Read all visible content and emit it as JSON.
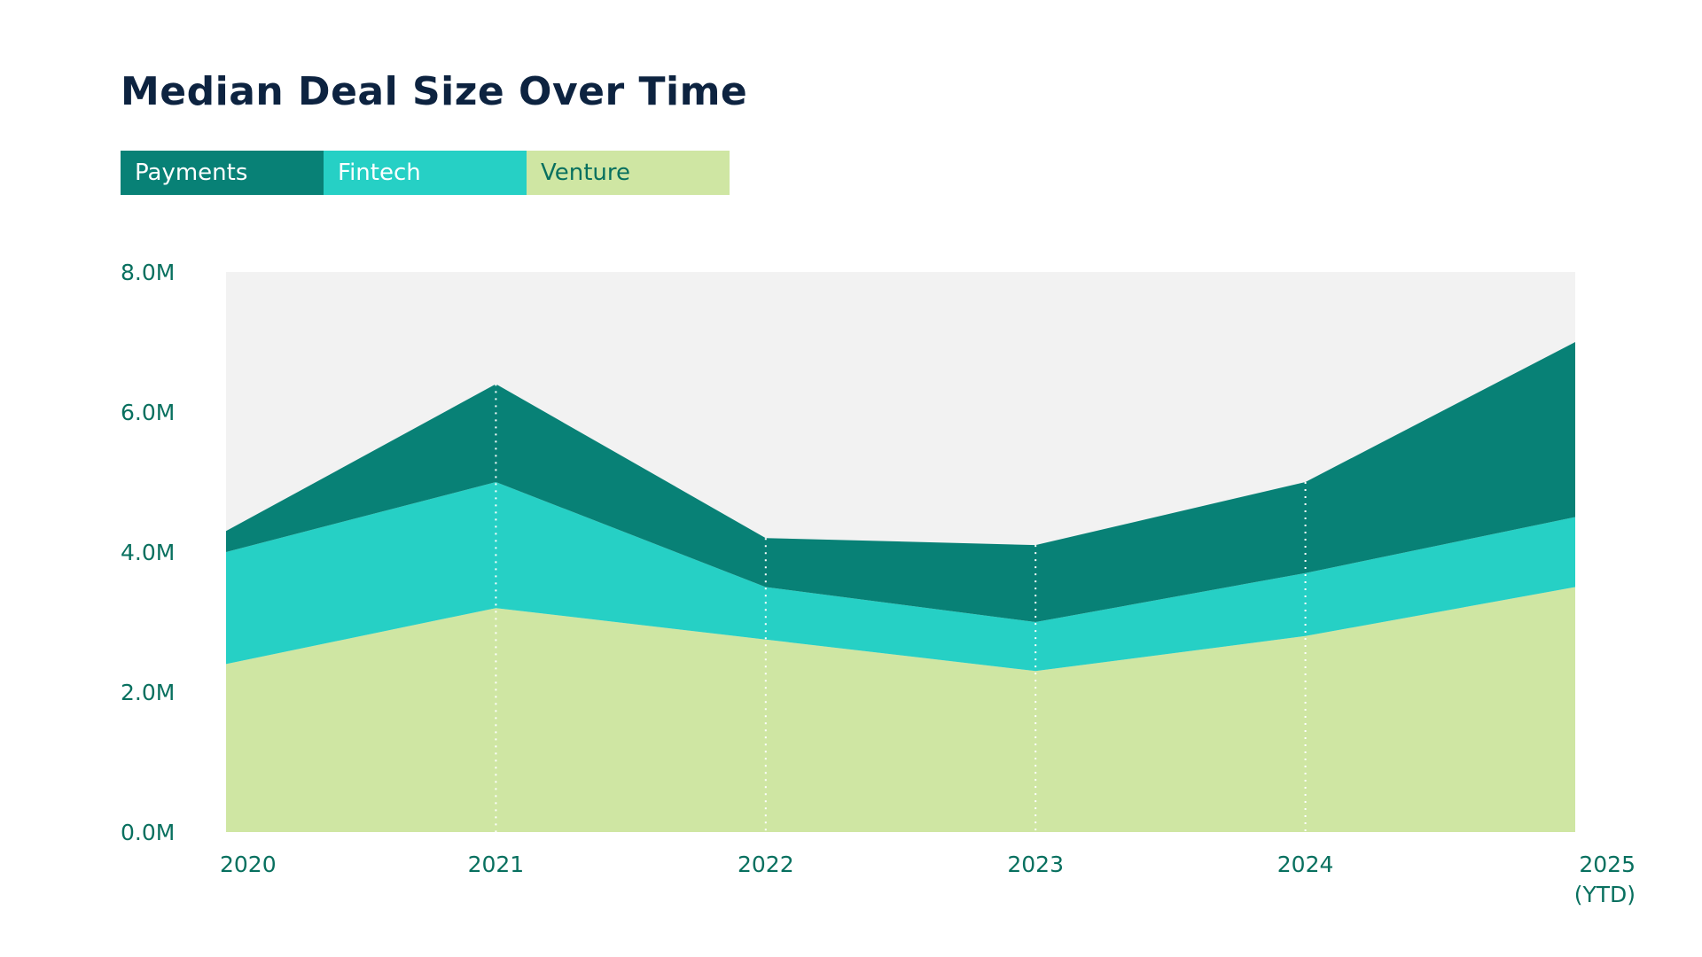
{
  "colors": {
    "title": "#0d2340",
    "axis_text": "#08705f",
    "plot_background": "#f2f2f2",
    "gridline": "#ffffff"
  },
  "chart_data": {
    "type": "area",
    "stacked": true,
    "title": "Median Deal Size Over Time",
    "xlabel": "",
    "ylabel": "",
    "x": [
      "2020",
      "2021",
      "2022",
      "2023",
      "2024",
      "2025 (YTD)"
    ],
    "x_tick_labels": [
      [
        "2020"
      ],
      [
        "2021"
      ],
      [
        "2022"
      ],
      [
        "2023"
      ],
      [
        "2024"
      ],
      [
        "2025",
        "(YTD)"
      ]
    ],
    "y_ticks": [
      "0.0M",
      "2.0M",
      "4.0M",
      "6.0M",
      "8.0M"
    ],
    "ylim": [
      0,
      8
    ],
    "legend_position": "top-left",
    "grid": "dotted vertical lines at interior years",
    "series": [
      {
        "name": "Venture",
        "color": "#cfe6a3",
        "text_color": "#08705f",
        "values": [
          2.4,
          3.2,
          2.75,
          2.3,
          2.8,
          3.5
        ]
      },
      {
        "name": "Fintech",
        "color": "#26d0c5",
        "text_color": "#ffffff",
        "values": [
          1.6,
          1.8,
          0.75,
          0.7,
          0.9,
          1.0
        ]
      },
      {
        "name": "Payments",
        "color": "#088176",
        "text_color": "#ffffff",
        "values": [
          0.3,
          1.4,
          0.7,
          1.1,
          1.3,
          2.5
        ]
      }
    ],
    "legend_order": [
      "Payments",
      "Fintech",
      "Venture"
    ]
  }
}
